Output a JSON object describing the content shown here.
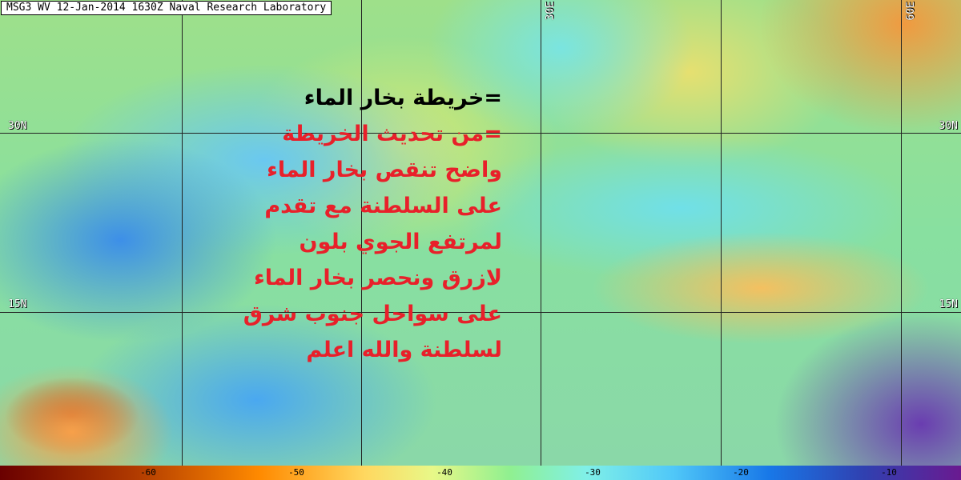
{
  "header": {
    "title": "MSG3 WV 12-Jan-2014 1630Z Naval Research Laboratory"
  },
  "map_labels": {
    "lon_30e": "30E",
    "lon_60e": "60E",
    "lat_30n_left": "30N",
    "lat_30n_right": "30N",
    "lat_15n_left": "15N",
    "lat_15n_right": "15N"
  },
  "overlay_text": {
    "lines": [
      {
        "text": "=خريطة بخار الماء",
        "color": "#000000"
      },
      {
        "text": "=من تحديث الخريطة",
        "color": "#e8202a"
      },
      {
        "text": "واضح تنقص بخار الماء",
        "color": "#e8202a"
      },
      {
        "text": "على السلطنة مع تقدم",
        "color": "#e8202a"
      },
      {
        "text": "لمرتفع الجوي بلون",
        "color": "#e8202a"
      },
      {
        "text": "لازرق ونحصر بخار الماء",
        "color": "#e8202a"
      },
      {
        "text": "على سواحل جنوب شرق",
        "color": "#e8202a"
      },
      {
        "text": "لسلطنة والله اعلم",
        "color": "#e8202a"
      }
    ]
  },
  "colorbar": {
    "ticks": [
      "-60",
      "-50",
      "-40",
      "-30",
      "-20",
      "-10"
    ]
  }
}
